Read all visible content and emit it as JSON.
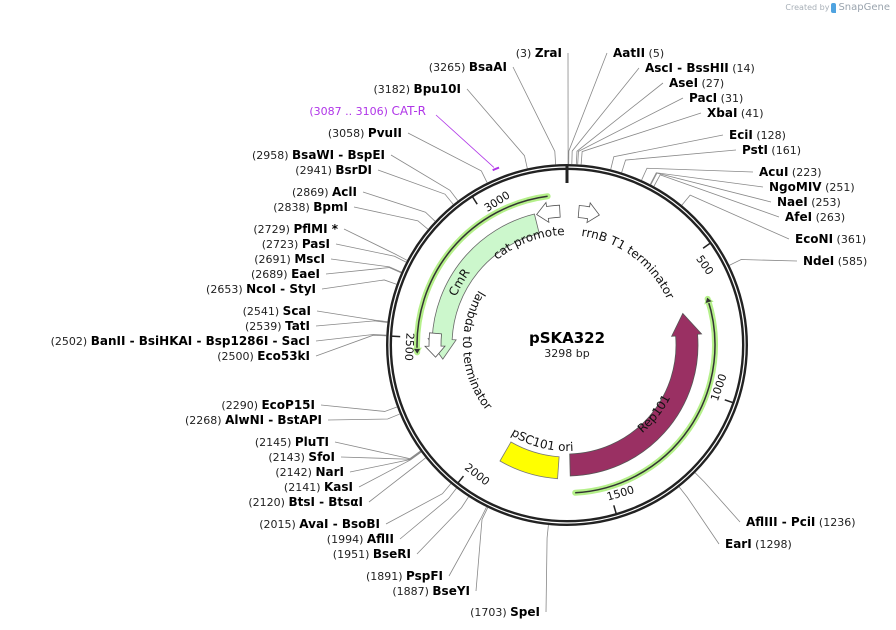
{
  "credit": {
    "prefix": "Created by",
    "brand": "SnapGene"
  },
  "plasmid": {
    "name": "pSKA322",
    "length_label": "3298 bp",
    "length": 3298
  },
  "ticks": [
    "500",
    "1000",
    "1500",
    "2000",
    "2500",
    "3000"
  ],
  "features": {
    "rep101": {
      "label": "Rep101",
      "start": 685,
      "end": 1636,
      "color": "#9a3063"
    },
    "cmr": {
      "label": "CmR",
      "start": 2414,
      "end": 3170,
      "color": "#ccf7cc"
    },
    "psc101_ori": {
      "label": "pSC101 ori",
      "start": 1686,
      "end": 1924,
      "color": "#ffff00"
    },
    "cat_promoter": {
      "label": "cat promoter",
      "start": 3178,
      "end": 3270
    },
    "rrnb_t1": {
      "label": "rrnB T1 terminator",
      "start": 46,
      "end": 128
    },
    "lambda_t0": {
      "label": "lambda t0 terminator",
      "start": 2425,
      "end": 2520
    },
    "highlight_color": "#b5f08a"
  },
  "primer": {
    "name": "CAT-R",
    "range": "(3087 .. 3106)",
    "start": 3087,
    "end": 3106,
    "color": "#b035e8"
  },
  "enzymes": [
    {
      "names": [
        "ZraI"
      ],
      "pos": "3"
    },
    {
      "names": [
        "AatII"
      ],
      "pos": "5"
    },
    {
      "names": [
        "AscI",
        "BssHII"
      ],
      "pos": "14"
    },
    {
      "names": [
        "AseI"
      ],
      "pos": "27"
    },
    {
      "names": [
        "PacI"
      ],
      "pos": "31"
    },
    {
      "names": [
        "XbaI"
      ],
      "pos": "41"
    },
    {
      "names": [
        "EciI"
      ],
      "pos": "128"
    },
    {
      "names": [
        "PstI"
      ],
      "pos": "161"
    },
    {
      "names": [
        "AcuI"
      ],
      "pos": "223"
    },
    {
      "names": [
        "NgoMIV"
      ],
      "pos": "251"
    },
    {
      "names": [
        "NaeI"
      ],
      "pos": "253"
    },
    {
      "names": [
        "AfeI"
      ],
      "pos": "263"
    },
    {
      "names": [
        "EcoNI"
      ],
      "pos": "361"
    },
    {
      "names": [
        "NdeI"
      ],
      "pos": "585"
    },
    {
      "names": [
        "AflIII",
        "PciI"
      ],
      "pos": "1236"
    },
    {
      "names": [
        "EarI"
      ],
      "pos": "1298"
    },
    {
      "names": [
        "SpeI"
      ],
      "pos": "1703"
    },
    {
      "names": [
        "BseYI"
      ],
      "pos": "1887"
    },
    {
      "names": [
        "PspFI"
      ],
      "pos": "1891"
    },
    {
      "names": [
        "BseRI"
      ],
      "pos": "1951"
    },
    {
      "names": [
        "AflII"
      ],
      "pos": "1994"
    },
    {
      "names": [
        "AvaI",
        "BsoBI"
      ],
      "pos": "2015"
    },
    {
      "names": [
        "BtsI",
        "BtsαI"
      ],
      "pos": "2120"
    },
    {
      "names": [
        "KasI"
      ],
      "pos": "2141"
    },
    {
      "names": [
        "NarI"
      ],
      "pos": "2142"
    },
    {
      "names": [
        "SfoI"
      ],
      "pos": "2143"
    },
    {
      "names": [
        "PluTI"
      ],
      "pos": "2145"
    },
    {
      "names": [
        "AlwNI",
        "BstAPI"
      ],
      "pos": "2268"
    },
    {
      "names": [
        "EcoP15I"
      ],
      "pos": "2290"
    },
    {
      "names": [
        "Eco53kI"
      ],
      "pos": "2500"
    },
    {
      "names": [
        "BanII",
        "BsiHKAI",
        "Bsp1286I",
        "SacI"
      ],
      "pos": "2502"
    },
    {
      "names": [
        "TatI"
      ],
      "pos": "2539"
    },
    {
      "names": [
        "ScaI"
      ],
      "pos": "2541"
    },
    {
      "names": [
        "NcoI",
        "StyI"
      ],
      "pos": "2653"
    },
    {
      "names": [
        "EaeI"
      ],
      "pos": "2689"
    },
    {
      "names": [
        "MscI"
      ],
      "pos": "2691"
    },
    {
      "names": [
        "PasI"
      ],
      "pos": "2723"
    },
    {
      "names": [
        "PflMI *"
      ],
      "pos": "2729"
    },
    {
      "names": [
        "BpmI"
      ],
      "pos": "2838"
    },
    {
      "names": [
        "AclI"
      ],
      "pos": "2869"
    },
    {
      "names": [
        "BsrDI"
      ],
      "pos": "2941"
    },
    {
      "names": [
        "BsaWI",
        "BspEI"
      ],
      "pos": "2958"
    },
    {
      "names": [
        "PvuII"
      ],
      "pos": "3058"
    },
    {
      "names": [
        "Bpu10I"
      ],
      "pos": "3182"
    },
    {
      "names": [
        "BsaAI"
      ],
      "pos": "3265"
    }
  ]
}
